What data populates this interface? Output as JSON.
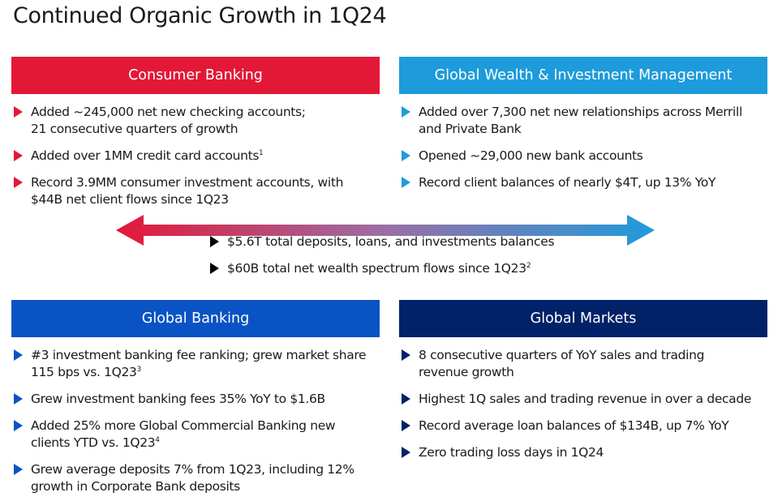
{
  "title": "Continued Organic Growth in 1Q24",
  "colors": {
    "consumer_red": "#E31837",
    "gwim_blue": "#1E9BDB",
    "global_banking_blue": "#0A53C4",
    "global_markets_navy": "#012169",
    "bullet_black": "#000000"
  },
  "panels": {
    "consumer": {
      "title": "Consumer Banking",
      "bullets": [
        {
          "lines": [
            "Added ~245,000 net new checking accounts;",
            "21 consecutive quarters of growth"
          ]
        },
        {
          "lines": [
            "Added over 1MM credit card accounts"
          ],
          "sup": "1"
        },
        {
          "lines": [
            "Record 3.9MM consumer investment accounts, with",
            "$44B net client flows since 1Q23"
          ]
        }
      ]
    },
    "gwim": {
      "title": "Global Wealth & Investment Management",
      "bullets": [
        {
          "lines": [
            "Added over 7,300 net new relationships across Merrill",
            "and Private Bank"
          ]
        },
        {
          "lines": [
            "Opened ~29,000 new bank accounts"
          ]
        },
        {
          "lines": [
            "Record client balances of nearly $4T, up 13% YoY"
          ]
        }
      ]
    },
    "global_banking": {
      "title": "Global Banking",
      "bullets": [
        {
          "lines": [
            "#3 investment banking fee ranking; grew market share",
            "115 bps vs. 1Q23"
          ],
          "sup": "3"
        },
        {
          "lines": [
            "Grew investment banking fees 35% YoY to $1.6B"
          ]
        },
        {
          "lines": [
            "Added 25% more Global Commercial Banking new",
            "clients YTD vs. 1Q23"
          ],
          "sup": "4"
        },
        {
          "lines": [
            "Grew average deposits 7% from 1Q23, including 12%",
            "growth in Corporate Bank deposits"
          ]
        }
      ]
    },
    "global_markets": {
      "title": "Global Markets",
      "bullets": [
        {
          "lines": [
            "8 consecutive quarters of YoY sales and trading",
            "revenue growth"
          ]
        },
        {
          "lines": [
            "Highest 1Q sales and trading revenue in over a decade"
          ]
        },
        {
          "lines": [
            "Record average loan balances of $134B, up 7% YoY"
          ]
        },
        {
          "lines": [
            "Zero trading loss days in 1Q24"
          ]
        }
      ]
    }
  },
  "center": {
    "bullets": [
      {
        "lines": [
          "$5.6T total deposits, loans, and investments balances"
        ]
      },
      {
        "lines": [
          "$60B total net wealth spectrum flows since 1Q23"
        ],
        "sup": "2"
      }
    ]
  }
}
